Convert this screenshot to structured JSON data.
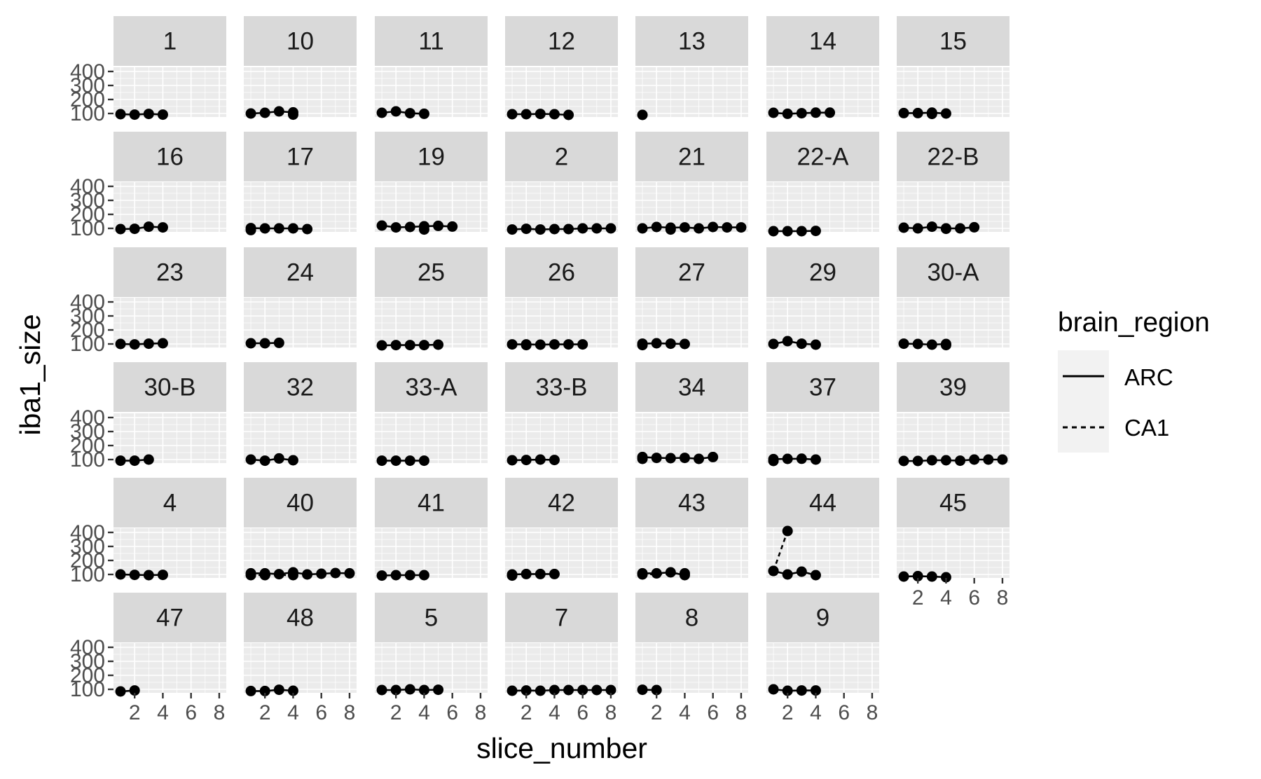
{
  "chart_data": {
    "type": "scatter",
    "facet_variable": "animal",
    "xlabel": "slice_number",
    "ylabel": "iba1_size",
    "xlim": [
      0.5,
      8.5
    ],
    "ylim": [
      75,
      430
    ],
    "x_ticks": [
      2,
      4,
      6,
      8
    ],
    "y_ticks": [
      100,
      200,
      300,
      400
    ],
    "grid": true,
    "legend": {
      "title": "brain_region",
      "position": "right",
      "entries": [
        {
          "label": "ARC",
          "linetype": "solid"
        },
        {
          "label": "CA1",
          "linetype": "dashed"
        }
      ]
    },
    "panels": [
      {
        "label": "1",
        "ARC": [
          [
            1,
            95
          ],
          [
            2,
            92
          ],
          [
            3,
            97
          ],
          [
            4,
            92
          ]
        ],
        "CA1": []
      },
      {
        "label": "10",
        "ARC": [
          [
            1,
            100
          ],
          [
            2,
            105
          ],
          [
            3,
            115
          ],
          [
            4,
            108
          ]
        ],
        "CA1": [
          [
            4,
            92
          ]
        ]
      },
      {
        "label": "11",
        "ARC": [
          [
            1,
            105
          ],
          [
            2,
            115
          ],
          [
            3,
            102
          ],
          [
            4,
            98
          ]
        ],
        "CA1": []
      },
      {
        "label": "12",
        "ARC": [
          [
            1,
            95
          ],
          [
            2,
            95
          ],
          [
            3,
            97
          ],
          [
            4,
            95
          ],
          [
            5,
            90
          ]
        ],
        "CA1": []
      },
      {
        "label": "13",
        "ARC": [
          [
            1,
            90
          ]
        ],
        "CA1": []
      },
      {
        "label": "14",
        "ARC": [
          [
            1,
            105
          ],
          [
            2,
            98
          ],
          [
            3,
            102
          ],
          [
            4,
            106
          ],
          [
            5,
            106
          ]
        ],
        "CA1": []
      },
      {
        "label": "15",
        "ARC": [
          [
            1,
            103
          ],
          [
            2,
            103
          ],
          [
            3,
            106
          ],
          [
            4,
            100
          ]
        ],
        "CA1": [
          [
            3,
            97
          ]
        ]
      },
      {
        "label": "16",
        "ARC": [
          [
            1,
            95
          ],
          [
            2,
            97
          ],
          [
            3,
            112
          ],
          [
            4,
            107
          ]
        ],
        "CA1": []
      },
      {
        "label": "17",
        "ARC": [
          [
            1,
            102
          ],
          [
            2,
            100
          ],
          [
            3,
            100
          ],
          [
            4,
            100
          ],
          [
            5,
            95
          ]
        ],
        "CA1": [
          [
            1,
            88
          ]
        ]
      },
      {
        "label": "19",
        "ARC": [
          [
            1,
            120
          ],
          [
            2,
            107
          ],
          [
            3,
            110
          ],
          [
            4,
            115
          ],
          [
            5,
            118
          ],
          [
            6,
            113
          ]
        ],
        "CA1": [
          [
            4,
            92
          ]
        ]
      },
      {
        "label": "2",
        "ARC": [
          [
            1,
            92
          ],
          [
            2,
            97
          ],
          [
            3,
            92
          ],
          [
            4,
            95
          ],
          [
            5,
            95
          ],
          [
            6,
            100
          ],
          [
            7,
            100
          ],
          [
            8,
            100
          ]
        ],
        "CA1": []
      },
      {
        "label": "21",
        "ARC": [
          [
            1,
            100
          ],
          [
            2,
            110
          ],
          [
            3,
            105
          ],
          [
            4,
            107
          ],
          [
            5,
            100
          ],
          [
            6,
            110
          ],
          [
            7,
            107
          ],
          [
            8,
            107
          ]
        ],
        "CA1": [
          [
            3,
            92
          ]
        ]
      },
      {
        "label": "22-A",
        "ARC": [
          [
            1,
            80
          ],
          [
            2,
            80
          ],
          [
            3,
            80
          ],
          [
            4,
            82
          ]
        ],
        "CA1": []
      },
      {
        "label": "22-B",
        "ARC": [
          [
            1,
            105
          ],
          [
            2,
            100
          ],
          [
            3,
            112
          ],
          [
            4,
            100
          ],
          [
            5,
            100
          ],
          [
            6,
            108
          ]
        ],
        "CA1": [
          [
            4,
            97
          ]
        ]
      },
      {
        "label": "23",
        "ARC": [
          [
            1,
            100
          ],
          [
            2,
            97
          ],
          [
            3,
            102
          ],
          [
            4,
            105
          ]
        ],
        "CA1": []
      },
      {
        "label": "24",
        "ARC": [
          [
            1,
            105
          ],
          [
            2,
            105
          ],
          [
            3,
            108
          ]
        ],
        "CA1": []
      },
      {
        "label": "25",
        "ARC": [
          [
            1,
            90
          ],
          [
            2,
            92
          ],
          [
            3,
            92
          ],
          [
            4,
            92
          ],
          [
            5,
            95
          ]
        ],
        "CA1": []
      },
      {
        "label": "26",
        "ARC": [
          [
            1,
            97
          ],
          [
            2,
            97
          ],
          [
            3,
            95
          ],
          [
            4,
            97
          ],
          [
            5,
            97
          ],
          [
            6,
            97
          ]
        ],
        "CA1": [
          [
            2,
            92
          ]
        ]
      },
      {
        "label": "27",
        "ARC": [
          [
            1,
            102
          ],
          [
            2,
            105
          ],
          [
            3,
            102
          ],
          [
            4,
            100
          ]
        ],
        "CA1": [
          [
            1,
            92
          ]
        ]
      },
      {
        "label": "29",
        "ARC": [
          [
            1,
            100
          ],
          [
            2,
            120
          ],
          [
            3,
            102
          ],
          [
            4,
            95
          ]
        ],
        "CA1": []
      },
      {
        "label": "30-A",
        "ARC": [
          [
            1,
            102
          ],
          [
            2,
            100
          ],
          [
            3,
            95
          ],
          [
            4,
            100
          ]
        ],
        "CA1": [
          [
            4,
            92
          ]
        ]
      },
      {
        "label": "30-B",
        "ARC": [
          [
            1,
            92
          ],
          [
            2,
            92
          ],
          [
            3,
            100
          ]
        ],
        "CA1": []
      },
      {
        "label": "32",
        "ARC": [
          [
            1,
            100
          ],
          [
            2,
            92
          ],
          [
            3,
            108
          ],
          [
            4,
            95
          ]
        ],
        "CA1": []
      },
      {
        "label": "33-A",
        "ARC": [
          [
            1,
            92
          ],
          [
            2,
            92
          ],
          [
            3,
            92
          ],
          [
            4,
            92
          ]
        ],
        "CA1": []
      },
      {
        "label": "33-B",
        "ARC": [
          [
            1,
            95
          ],
          [
            2,
            97
          ],
          [
            3,
            100
          ],
          [
            4,
            97
          ]
        ],
        "CA1": []
      },
      {
        "label": "34",
        "ARC": [
          [
            1,
            118
          ],
          [
            2,
            112
          ],
          [
            3,
            110
          ],
          [
            4,
            112
          ],
          [
            5,
            105
          ],
          [
            6,
            118
          ]
        ],
        "CA1": [
          [
            1,
            105
          ]
        ]
      },
      {
        "label": "37",
        "ARC": [
          [
            1,
            103
          ],
          [
            2,
            105
          ],
          [
            3,
            106
          ],
          [
            4,
            100
          ]
        ],
        "CA1": [
          [
            1,
            90
          ]
        ]
      },
      {
        "label": "39",
        "ARC": [
          [
            1,
            90
          ],
          [
            2,
            90
          ],
          [
            3,
            95
          ],
          [
            4,
            95
          ],
          [
            5,
            92
          ],
          [
            6,
            100
          ],
          [
            7,
            100
          ],
          [
            8,
            100
          ]
        ],
        "CA1": []
      },
      {
        "label": "4",
        "ARC": [
          [
            1,
            100
          ],
          [
            2,
            97
          ],
          [
            3,
            95
          ],
          [
            4,
            97
          ]
        ],
        "CA1": []
      },
      {
        "label": "40",
        "ARC": [
          [
            1,
            108
          ],
          [
            2,
            108
          ],
          [
            3,
            102
          ],
          [
            4,
            115
          ],
          [
            5,
            100
          ],
          [
            6,
            105
          ],
          [
            7,
            110
          ],
          [
            8,
            108
          ]
        ],
        "CA1": [
          [
            1,
            95
          ],
          [
            2,
            95
          ],
          [
            4,
            95
          ]
        ]
      },
      {
        "label": "41",
        "ARC": [
          [
            1,
            92
          ],
          [
            2,
            95
          ],
          [
            3,
            95
          ],
          [
            4,
            95
          ]
        ],
        "CA1": []
      },
      {
        "label": "42",
        "ARC": [
          [
            1,
            100
          ],
          [
            2,
            103
          ],
          [
            3,
            103
          ],
          [
            4,
            103
          ]
        ],
        "CA1": [
          [
            1,
            92
          ]
        ]
      },
      {
        "label": "43",
        "ARC": [
          [
            1,
            108
          ],
          [
            2,
            108
          ],
          [
            3,
            115
          ],
          [
            4,
            95
          ]
        ],
        "CA1": [
          [
            1,
            100
          ],
          [
            4,
            108
          ]
        ]
      },
      {
        "label": "44",
        "ARC": [
          [
            1,
            125
          ],
          [
            2,
            100
          ],
          [
            3,
            120
          ],
          [
            4,
            95
          ]
        ],
        "CA1": [
          [
            1,
            125
          ],
          [
            2,
            410
          ]
        ]
      },
      {
        "label": "45",
        "ARC": [
          [
            1,
            85
          ],
          [
            2,
            88
          ],
          [
            3,
            85
          ],
          [
            4,
            80
          ]
        ],
        "CA1": []
      },
      {
        "label": "47",
        "ARC": [
          [
            1,
            85
          ],
          [
            2,
            92
          ]
        ],
        "CA1": []
      },
      {
        "label": "48",
        "ARC": [
          [
            1,
            88
          ],
          [
            2,
            88
          ],
          [
            3,
            97
          ],
          [
            4,
            90
          ]
        ],
        "CA1": []
      },
      {
        "label": "5",
        "ARC": [
          [
            1,
            95
          ],
          [
            2,
            95
          ],
          [
            3,
            100
          ],
          [
            4,
            95
          ],
          [
            5,
            97
          ]
        ],
        "CA1": []
      },
      {
        "label": "7",
        "ARC": [
          [
            1,
            90
          ],
          [
            2,
            92
          ],
          [
            3,
            90
          ],
          [
            4,
            95
          ],
          [
            5,
            95
          ],
          [
            6,
            95
          ],
          [
            7,
            95
          ],
          [
            8,
            95
          ]
        ],
        "CA1": []
      },
      {
        "label": "8",
        "ARC": [
          [
            1,
            97
          ],
          [
            2,
            95
          ]
        ],
        "CA1": []
      },
      {
        "label": "9",
        "ARC": [
          [
            1,
            100
          ],
          [
            2,
            90
          ],
          [
            3,
            92
          ],
          [
            4,
            92
          ]
        ],
        "CA1": []
      }
    ]
  }
}
